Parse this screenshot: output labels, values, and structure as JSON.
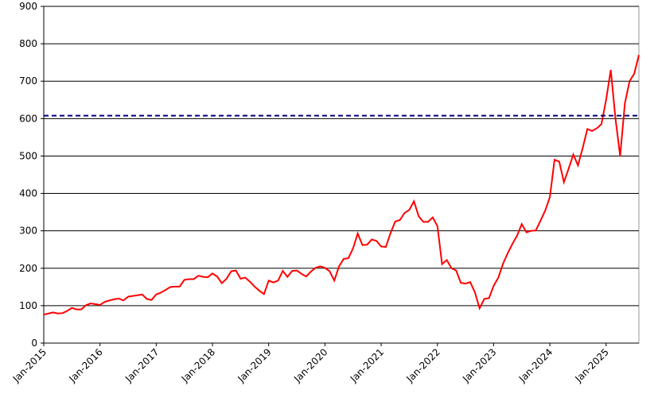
{
  "chart_data": {
    "type": "line",
    "x": [
      "Jan-2015",
      "Feb-2015",
      "Mar-2015",
      "Apr-2015",
      "May-2015",
      "Jun-2015",
      "Jul-2015",
      "Aug-2015",
      "Sep-2015",
      "Oct-2015",
      "Nov-2015",
      "Dec-2015",
      "Jan-2016",
      "Feb-2016",
      "Mar-2016",
      "Apr-2016",
      "May-2016",
      "Jun-2016",
      "Jul-2016",
      "Aug-2016",
      "Sep-2016",
      "Oct-2016",
      "Nov-2016",
      "Dec-2016",
      "Jan-2017",
      "Feb-2017",
      "Mar-2017",
      "Apr-2017",
      "May-2017",
      "Jun-2017",
      "Jul-2017",
      "Aug-2017",
      "Sep-2017",
      "Oct-2017",
      "Nov-2017",
      "Dec-2017",
      "Jan-2018",
      "Feb-2018",
      "Mar-2018",
      "Apr-2018",
      "May-2018",
      "Jun-2018",
      "Jul-2018",
      "Aug-2018",
      "Sep-2018",
      "Oct-2018",
      "Nov-2018",
      "Dec-2018",
      "Jan-2019",
      "Feb-2019",
      "Mar-2019",
      "Apr-2019",
      "May-2019",
      "Jun-2019",
      "Jul-2019",
      "Aug-2019",
      "Sep-2019",
      "Oct-2019",
      "Nov-2019",
      "Dec-2019",
      "Jan-2020",
      "Feb-2020",
      "Mar-2020",
      "Apr-2020",
      "May-2020",
      "Jun-2020",
      "Jul-2020",
      "Aug-2020",
      "Sep-2020",
      "Oct-2020",
      "Nov-2020",
      "Dec-2020",
      "Jan-2021",
      "Feb-2021",
      "Mar-2021",
      "Apr-2021",
      "May-2021",
      "Jun-2021",
      "Jul-2021",
      "Aug-2021",
      "Sep-2021",
      "Oct-2021",
      "Nov-2021",
      "Dec-2021",
      "Jan-2022",
      "Feb-2022",
      "Mar-2022",
      "Apr-2022",
      "May-2022",
      "Jun-2022",
      "Jul-2022",
      "Aug-2022",
      "Sep-2022",
      "Oct-2022",
      "Nov-2022",
      "Dec-2022",
      "Jan-2023",
      "Feb-2023",
      "Mar-2023",
      "Apr-2023",
      "May-2023",
      "Jun-2023",
      "Jul-2023",
      "Aug-2023",
      "Sep-2023",
      "Oct-2023",
      "Nov-2023",
      "Dec-2023",
      "Jan-2024",
      "Feb-2024",
      "Mar-2024",
      "Apr-2024",
      "May-2024",
      "Jun-2024",
      "Jul-2024",
      "Aug-2024",
      "Sep-2024",
      "Oct-2024",
      "Nov-2024",
      "Dec-2024",
      "Jan-2025",
      "Feb-2025",
      "Mar-2025",
      "Apr-2025",
      "May-2025",
      "Jun-2025",
      "Jul-2025",
      "Aug-2025"
    ],
    "series": [
      {
        "color": "#ff0000",
        "values": [
          76,
          79,
          82,
          79,
          80,
          86,
          94,
          90,
          90,
          101,
          106,
          104,
          102,
          110,
          114,
          117,
          119,
          114,
          124,
          126,
          128,
          130,
          118,
          115,
          130,
          135,
          142,
          150,
          151,
          151,
          169,
          171,
          171,
          180,
          177,
          176,
          186,
          178,
          160,
          172,
          192,
          194,
          172,
          175,
          164,
          151,
          140,
          131,
          167,
          162,
          167,
          193,
          177,
          193,
          194,
          185,
          178,
          191,
          201,
          205,
          201,
          192,
          167,
          205,
          225,
          227,
          253,
          293,
          262,
          263,
          277,
          273,
          258,
          257,
          294,
          325,
          329,
          348,
          356,
          379,
          339,
          324,
          324,
          336,
          313,
          211,
          222,
          200,
          194,
          161,
          159,
          163,
          136,
          93,
          118,
          120,
          153,
          175,
          212,
          240,
          265,
          287,
          318,
          296,
          300,
          301,
          327,
          354,
          390,
          490,
          485,
          430,
          466,
          504,
          475,
          521,
          572,
          567,
          574,
          585,
          650,
          730,
          600,
          500,
          640,
          700,
          720,
          770
        ]
      }
    ],
    "hline": {
      "value": 608,
      "color": "#000080"
    },
    "xlim": [
      "Jan-2015",
      "Aug-2025"
    ],
    "xticks": [
      "Jan-2015",
      "Jan-2016",
      "Jan-2017",
      "Jan-2018",
      "Jan-2019",
      "Jan-2020",
      "Jan-2021",
      "Jan-2022",
      "Jan-2023",
      "Jan-2024",
      "Jan-2025"
    ],
    "ylim": [
      0,
      900
    ],
    "yticks": [
      0,
      100,
      200,
      300,
      400,
      500,
      600,
      700,
      800,
      900
    ],
    "grid": true
  }
}
